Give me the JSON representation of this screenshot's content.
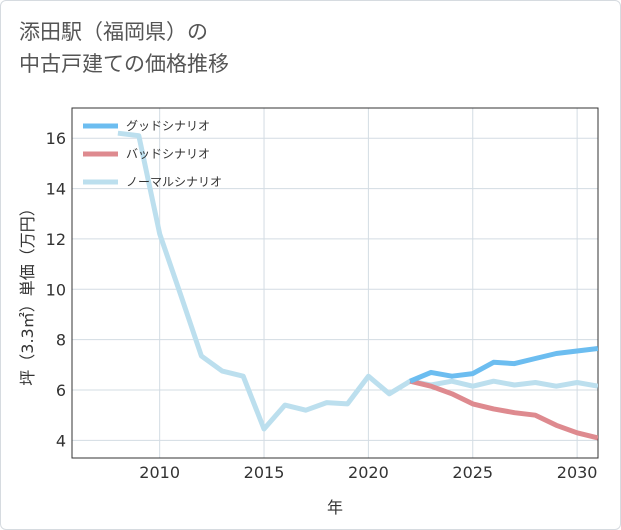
{
  "title_line1": "添田駅（福岡県）の",
  "title_line2": "中古戸建ての価格推移",
  "chart_data": {
    "type": "line",
    "title": "添田駅（福岡県）の中古戸建ての価格推移",
    "xlabel": "年",
    "ylabel": "坪（3.3㎡）単価（万円）",
    "xlim": [
      2005.8,
      2031
    ],
    "ylim": [
      3.3,
      17.2
    ],
    "xticks": [
      2010,
      2015,
      2020,
      2025,
      2030
    ],
    "yticks": [
      4,
      6,
      8,
      10,
      12,
      14,
      16
    ],
    "grid": true,
    "legend_position": "top-left",
    "series": [
      {
        "name": "グッドシナリオ",
        "color": "#6cbdf0",
        "x": [
          2022,
          2023,
          2024,
          2025,
          2026,
          2027,
          2028,
          2029,
          2030,
          2031
        ],
        "values": [
          6.35,
          6.7,
          6.55,
          6.65,
          7.1,
          7.05,
          7.25,
          7.45,
          7.55,
          7.65
        ]
      },
      {
        "name": "バッドシナリオ",
        "color": "#de8a8f",
        "x": [
          2022,
          2023,
          2024,
          2025,
          2026,
          2027,
          2028,
          2029,
          2030,
          2031
        ],
        "values": [
          6.35,
          6.15,
          5.85,
          5.45,
          5.25,
          5.1,
          5.0,
          4.6,
          4.3,
          4.1
        ]
      },
      {
        "name": "ノーマルシナリオ",
        "color": "#bcdfee",
        "x": [
          2008,
          2009,
          2010,
          2011,
          2012,
          2013,
          2014,
          2015,
          2016,
          2017,
          2018,
          2019,
          2020,
          2021,
          2022,
          2023,
          2024,
          2025,
          2026,
          2027,
          2028,
          2029,
          2030,
          2031
        ],
        "values": [
          16.2,
          16.1,
          12.2,
          9.8,
          7.35,
          6.75,
          6.55,
          4.45,
          5.4,
          5.2,
          5.5,
          5.45,
          6.55,
          5.85,
          6.35,
          6.2,
          6.35,
          6.15,
          6.35,
          6.2,
          6.3,
          6.15,
          6.3,
          6.15
        ]
      }
    ]
  }
}
